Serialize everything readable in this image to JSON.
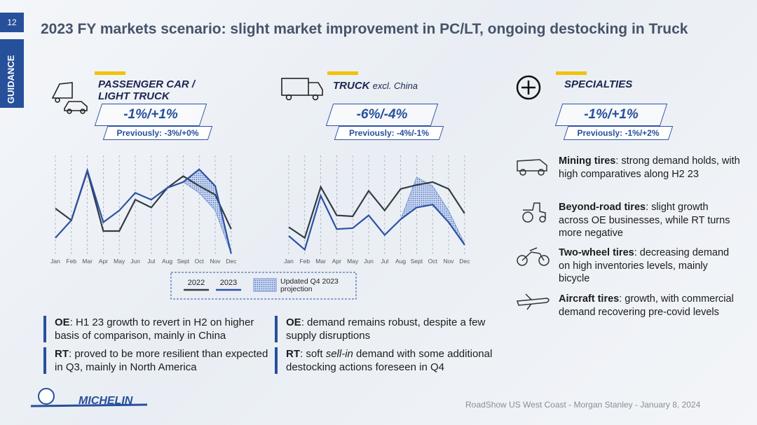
{
  "header": {
    "page": "12",
    "tab": "GUIDANCE",
    "title": "2023 FY markets scenario: slight market improvement in PC/LT, ongoing destocking in Truck"
  },
  "segments": [
    {
      "name": "PASSENGER CAR / LIGHT TRUCK",
      "range": "-1%/+1%",
      "previous": "Previously: -3%/+0%"
    },
    {
      "name": "TRUCK",
      "qualifier": "excl. China",
      "range": "-6%/-4%",
      "previous": "Previously: -4%/-1%"
    },
    {
      "name": "SPECIALTIES",
      "range": "-1%/+1%",
      "previous": "Previously: -1%/+2%"
    }
  ],
  "chart_data": [
    {
      "type": "line",
      "categories": [
        "Jan",
        "Feb",
        "Mar",
        "Apr",
        "May",
        "Jun",
        "Jul",
        "Aug",
        "Sept",
        "Oct",
        "Nov",
        "Dec"
      ],
      "series": [
        {
          "name": "2022",
          "color": "#333b45",
          "values": [
            48,
            36,
            86,
            25,
            25,
            57,
            49,
            69,
            81,
            71,
            62,
            27
          ]
        },
        {
          "name": "2023",
          "color": "#2d52a3",
          "values": [
            18,
            36,
            87,
            34,
            46,
            64,
            57,
            69,
            75,
            88,
            71,
            2
          ]
        },
        {
          "name": "Updated Q4 2023 projection",
          "color": "#6f8fd0",
          "values": [
            null,
            null,
            null,
            null,
            null,
            null,
            null,
            null,
            75,
            64,
            46,
            2
          ]
        }
      ],
      "ylim": [
        0,
        100
      ],
      "grid": true
    },
    {
      "type": "line",
      "categories": [
        "Jan",
        "Feb",
        "Mar",
        "Apr",
        "May",
        "Jun",
        "Jul",
        "Aug",
        "Sept",
        "Oct",
        "Nov",
        "Dec"
      ],
      "series": [
        {
          "name": "2022",
          "color": "#333b45",
          "values": [
            29,
            18,
            70,
            41,
            40,
            66,
            46,
            68,
            72,
            75,
            68,
            43
          ]
        },
        {
          "name": "2023",
          "color": "#2d52a3",
          "values": [
            20,
            6,
            61,
            27,
            28,
            41,
            21,
            37,
            49,
            52,
            34,
            11
          ]
        },
        {
          "name": "Updated Q4 2023 projection",
          "color": "#6f8fd0",
          "values": [
            null,
            null,
            null,
            null,
            null,
            null,
            null,
            37,
            80,
            71,
            46,
            12
          ]
        }
      ],
      "ylim": [
        0,
        100
      ],
      "grid": true
    }
  ],
  "notes": [
    {
      "label": "OE",
      "text": ": H1 23 growth to revert in H2 on higher basis of comparison, mainly in China"
    },
    {
      "label": "RT",
      "text": ": proved to be more resilient than expected in Q3, mainly in North America"
    },
    {
      "label": "OE",
      "text": ": demand remains robust, despite a few supply disruptions"
    },
    {
      "label": "RT",
      "text": ": soft ",
      "emphasis": "sell-in",
      "tail": " demand with some additional destocking actions foreseen in Q4"
    }
  ],
  "specialties": [
    {
      "label": "Mining tires",
      "text": ": strong demand holds, with high comparatives along H2 23"
    },
    {
      "label": "Beyond-road tires",
      "text": ": slight growth across OE businesses, while RT turns more negative"
    },
    {
      "label": "Two-wheel tires",
      "text": ": decreasing demand on high inventories levels, mainly bicycle"
    },
    {
      "label": "Aircraft tires",
      "text": ": growth, with commercial demand recovering pre-covid levels"
    }
  ],
  "footer": {
    "logo": "MICHELIN",
    "source": "RoadShow US West Coast - Morgan Stanley - January 8, 2024"
  }
}
